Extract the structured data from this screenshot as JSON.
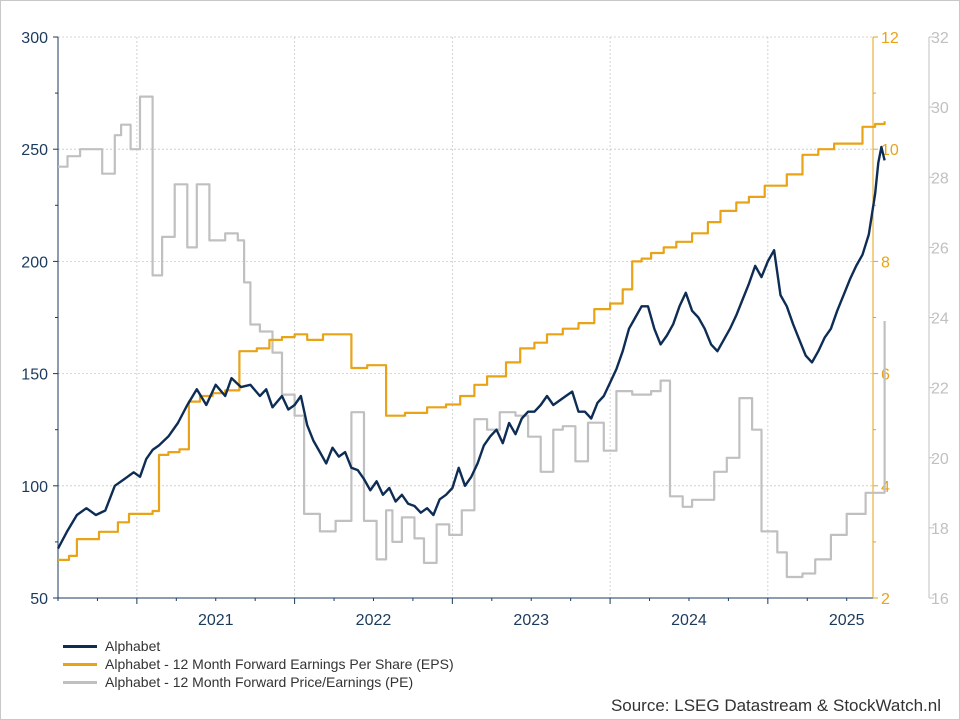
{
  "chart_data": {
    "type": "line",
    "x_axis": {
      "tick_labels": [
        "2021",
        "2022",
        "2023",
        "2024",
        "2025"
      ],
      "range": [
        "2020-07",
        "2025-09"
      ]
    },
    "y_left": {
      "ticks": [
        50,
        100,
        150,
        200,
        250,
        300
      ],
      "range": [
        50,
        300
      ],
      "color": "#1b3a5c"
    },
    "y_right_eps": {
      "ticks": [
        2,
        4,
        6,
        8,
        10,
        12
      ],
      "range": [
        2,
        12
      ],
      "color": "#e8a317"
    },
    "y_right_pe": {
      "ticks": [
        16,
        18,
        20,
        22,
        24,
        26,
        28,
        30,
        32
      ],
      "range": [
        16,
        32
      ],
      "color": "#c0c0c0"
    },
    "grid": true,
    "legend_position": "bottom-left",
    "series": [
      {
        "name": "Alphabet",
        "axis": "left",
        "color": "#0e2d55",
        "points": [
          [
            2020.5,
            72
          ],
          [
            2020.56,
            80
          ],
          [
            2020.62,
            87
          ],
          [
            2020.68,
            90
          ],
          [
            2020.74,
            87
          ],
          [
            2020.8,
            89
          ],
          [
            2020.86,
            100
          ],
          [
            2020.92,
            103
          ],
          [
            2020.98,
            106
          ],
          [
            2021.02,
            104
          ],
          [
            2021.06,
            112
          ],
          [
            2021.1,
            116
          ],
          [
            2021.14,
            118
          ],
          [
            2021.2,
            122
          ],
          [
            2021.26,
            128
          ],
          [
            2021.32,
            136
          ],
          [
            2021.38,
            143
          ],
          [
            2021.44,
            136
          ],
          [
            2021.5,
            145
          ],
          [
            2021.56,
            140
          ],
          [
            2021.6,
            148
          ],
          [
            2021.66,
            144
          ],
          [
            2021.72,
            145
          ],
          [
            2021.78,
            140
          ],
          [
            2021.82,
            143
          ],
          [
            2021.86,
            135
          ],
          [
            2021.92,
            140
          ],
          [
            2021.96,
            134
          ],
          [
            2022.0,
            136
          ],
          [
            2022.04,
            140
          ],
          [
            2022.08,
            127
          ],
          [
            2022.12,
            120
          ],
          [
            2022.16,
            115
          ],
          [
            2022.2,
            110
          ],
          [
            2022.24,
            117
          ],
          [
            2022.28,
            113
          ],
          [
            2022.32,
            115
          ],
          [
            2022.36,
            108
          ],
          [
            2022.4,
            107
          ],
          [
            2022.44,
            103
          ],
          [
            2022.48,
            98
          ],
          [
            2022.52,
            102
          ],
          [
            2022.56,
            96
          ],
          [
            2022.6,
            99
          ],
          [
            2022.64,
            93
          ],
          [
            2022.68,
            96
          ],
          [
            2022.72,
            92
          ],
          [
            2022.76,
            91
          ],
          [
            2022.8,
            88
          ],
          [
            2022.84,
            90
          ],
          [
            2022.88,
            87
          ],
          [
            2022.92,
            94
          ],
          [
            2022.96,
            96
          ],
          [
            2023.0,
            99
          ],
          [
            2023.04,
            108
          ],
          [
            2023.08,
            100
          ],
          [
            2023.12,
            104
          ],
          [
            2023.16,
            110
          ],
          [
            2023.2,
            118
          ],
          [
            2023.24,
            122
          ],
          [
            2023.28,
            125
          ],
          [
            2023.32,
            119
          ],
          [
            2023.36,
            128
          ],
          [
            2023.4,
            123
          ],
          [
            2023.44,
            130
          ],
          [
            2023.48,
            133
          ],
          [
            2023.52,
            133
          ],
          [
            2023.56,
            136
          ],
          [
            2023.6,
            140
          ],
          [
            2023.64,
            136
          ],
          [
            2023.68,
            138
          ],
          [
            2023.72,
            140
          ],
          [
            2023.76,
            142
          ],
          [
            2023.8,
            133
          ],
          [
            2023.84,
            133
          ],
          [
            2023.88,
            130
          ],
          [
            2023.92,
            137
          ],
          [
            2023.96,
            140
          ],
          [
            2024.0,
            146
          ],
          [
            2024.04,
            152
          ],
          [
            2024.08,
            160
          ],
          [
            2024.12,
            170
          ],
          [
            2024.16,
            175
          ],
          [
            2024.2,
            180
          ],
          [
            2024.24,
            180
          ],
          [
            2024.28,
            170
          ],
          [
            2024.32,
            163
          ],
          [
            2024.36,
            167
          ],
          [
            2024.4,
            172
          ],
          [
            2024.44,
            180
          ],
          [
            2024.48,
            186
          ],
          [
            2024.52,
            178
          ],
          [
            2024.56,
            175
          ],
          [
            2024.6,
            170
          ],
          [
            2024.64,
            163
          ],
          [
            2024.68,
            160
          ],
          [
            2024.72,
            165
          ],
          [
            2024.76,
            170
          ],
          [
            2024.8,
            176
          ],
          [
            2024.84,
            183
          ],
          [
            2024.88,
            190
          ],
          [
            2024.92,
            198
          ],
          [
            2024.96,
            193
          ],
          [
            2025.0,
            200
          ],
          [
            2025.04,
            205
          ],
          [
            2025.08,
            185
          ],
          [
            2025.12,
            180
          ],
          [
            2025.16,
            172
          ],
          [
            2025.2,
            165
          ],
          [
            2025.24,
            158
          ],
          [
            2025.28,
            155
          ],
          [
            2025.32,
            160
          ],
          [
            2025.36,
            166
          ],
          [
            2025.4,
            170
          ],
          [
            2025.44,
            178
          ],
          [
            2025.48,
            185
          ],
          [
            2025.52,
            192
          ],
          [
            2025.56,
            198
          ],
          [
            2025.6,
            203
          ],
          [
            2025.64,
            212
          ],
          [
            2025.68,
            230
          ],
          [
            2025.7,
            244
          ],
          [
            2025.72,
            251
          ],
          [
            2025.74,
            245
          ]
        ]
      },
      {
        "name": "Alphabet - 12 Month Forward Earnings Per Share (EPS)",
        "axis": "right_eps",
        "color": "#e8a317",
        "points": [
          [
            2020.5,
            2.68
          ],
          [
            2020.57,
            2.75
          ],
          [
            2020.62,
            3.05
          ],
          [
            2020.76,
            3.18
          ],
          [
            2020.88,
            3.35
          ],
          [
            2020.95,
            3.5
          ],
          [
            2021.1,
            3.55
          ],
          [
            2021.14,
            4.55
          ],
          [
            2021.2,
            4.6
          ],
          [
            2021.27,
            4.65
          ],
          [
            2021.33,
            5.5
          ],
          [
            2021.4,
            5.6
          ],
          [
            2021.48,
            5.65
          ],
          [
            2021.56,
            5.7
          ],
          [
            2021.65,
            6.4
          ],
          [
            2021.76,
            6.45
          ],
          [
            2021.84,
            6.6
          ],
          [
            2021.92,
            6.65
          ],
          [
            2022.0,
            6.7
          ],
          [
            2022.08,
            6.6
          ],
          [
            2022.18,
            6.7
          ],
          [
            2022.36,
            6.1
          ],
          [
            2022.46,
            6.15
          ],
          [
            2022.58,
            5.25
          ],
          [
            2022.7,
            5.3
          ],
          [
            2022.84,
            5.4
          ],
          [
            2022.96,
            5.45
          ],
          [
            2023.05,
            5.6
          ],
          [
            2023.14,
            5.8
          ],
          [
            2023.22,
            5.95
          ],
          [
            2023.34,
            6.2
          ],
          [
            2023.43,
            6.45
          ],
          [
            2023.52,
            6.55
          ],
          [
            2023.6,
            6.7
          ],
          [
            2023.7,
            6.8
          ],
          [
            2023.8,
            6.9
          ],
          [
            2023.9,
            7.15
          ],
          [
            2024.0,
            7.25
          ],
          [
            2024.08,
            7.5
          ],
          [
            2024.14,
            8.0
          ],
          [
            2024.2,
            8.05
          ],
          [
            2024.26,
            8.15
          ],
          [
            2024.34,
            8.25
          ],
          [
            2024.42,
            8.35
          ],
          [
            2024.52,
            8.5
          ],
          [
            2024.62,
            8.7
          ],
          [
            2024.7,
            8.9
          ],
          [
            2024.8,
            9.05
          ],
          [
            2024.88,
            9.15
          ],
          [
            2024.98,
            9.35
          ],
          [
            2025.12,
            9.55
          ],
          [
            2025.22,
            9.9
          ],
          [
            2025.32,
            10.0
          ],
          [
            2025.42,
            10.1
          ],
          [
            2025.6,
            10.4
          ],
          [
            2025.68,
            10.45
          ],
          [
            2025.74,
            10.5
          ]
        ]
      },
      {
        "name": "Alphabet - 12 Month Forward Price/Earnings (PE)",
        "axis": "right_pe",
        "color": "#c0c0c0",
        "points": [
          [
            2020.5,
            28.3
          ],
          [
            2020.56,
            28.6
          ],
          [
            2020.64,
            28.8
          ],
          [
            2020.78,
            28.1
          ],
          [
            2020.86,
            29.2
          ],
          [
            2020.9,
            29.5
          ],
          [
            2020.96,
            28.8
          ],
          [
            2021.02,
            30.3
          ],
          [
            2021.1,
            25.2
          ],
          [
            2021.16,
            26.3
          ],
          [
            2021.24,
            27.8
          ],
          [
            2021.32,
            26.0
          ],
          [
            2021.38,
            27.8
          ],
          [
            2021.46,
            26.2
          ],
          [
            2021.56,
            26.4
          ],
          [
            2021.64,
            26.2
          ],
          [
            2021.68,
            25.0
          ],
          [
            2021.72,
            23.8
          ],
          [
            2021.78,
            23.6
          ],
          [
            2021.86,
            23.0
          ],
          [
            2021.92,
            21.8
          ],
          [
            2022.0,
            21.2
          ],
          [
            2022.06,
            18.4
          ],
          [
            2022.16,
            17.9
          ],
          [
            2022.26,
            18.2
          ],
          [
            2022.36,
            21.3
          ],
          [
            2022.44,
            18.2
          ],
          [
            2022.52,
            17.1
          ],
          [
            2022.58,
            18.5
          ],
          [
            2022.62,
            17.6
          ],
          [
            2022.68,
            18.3
          ],
          [
            2022.76,
            17.7
          ],
          [
            2022.82,
            17.0
          ],
          [
            2022.9,
            18.1
          ],
          [
            2022.98,
            17.8
          ],
          [
            2023.06,
            18.5
          ],
          [
            2023.14,
            21.1
          ],
          [
            2023.22,
            20.8
          ],
          [
            2023.3,
            21.3
          ],
          [
            2023.4,
            21.2
          ],
          [
            2023.48,
            20.6
          ],
          [
            2023.56,
            19.6
          ],
          [
            2023.64,
            20.8
          ],
          [
            2023.7,
            20.9
          ],
          [
            2023.78,
            19.9
          ],
          [
            2023.86,
            21.0
          ],
          [
            2023.96,
            20.2
          ],
          [
            2024.04,
            21.9
          ],
          [
            2024.14,
            21.8
          ],
          [
            2024.26,
            21.9
          ],
          [
            2024.32,
            22.2
          ],
          [
            2024.38,
            18.9
          ],
          [
            2024.46,
            18.6
          ],
          [
            2024.52,
            18.8
          ],
          [
            2024.6,
            18.8
          ],
          [
            2024.66,
            19.6
          ],
          [
            2024.74,
            20.0
          ],
          [
            2024.82,
            21.7
          ],
          [
            2024.9,
            20.8
          ],
          [
            2024.96,
            17.9
          ],
          [
            2025.06,
            17.3
          ],
          [
            2025.12,
            16.6
          ],
          [
            2025.22,
            16.7
          ],
          [
            2025.3,
            17.1
          ],
          [
            2025.4,
            17.8
          ],
          [
            2025.5,
            18.4
          ],
          [
            2025.62,
            19.0
          ],
          [
            2025.68,
            19.0
          ],
          [
            2025.74,
            23.9
          ]
        ]
      }
    ],
    "source": "Source: LSEG Datastream & StockWatch.nl"
  }
}
